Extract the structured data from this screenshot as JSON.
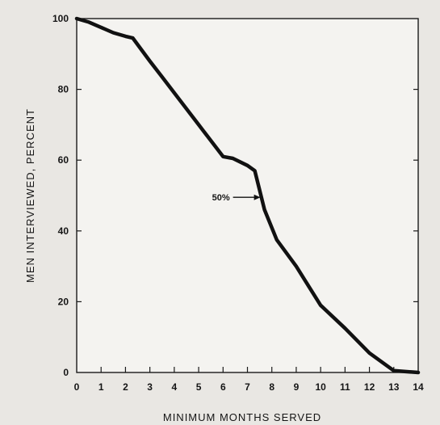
{
  "chart_data": {
    "type": "line",
    "title": "",
    "xlabel": "MINIMUM MONTHS SERVED",
    "ylabel": "MEN INTERVIEWED, PERCENT",
    "xlim": [
      0,
      14
    ],
    "ylim": [
      0,
      100
    ],
    "xticks": [
      0,
      1,
      2,
      3,
      4,
      5,
      6,
      7,
      8,
      9,
      10,
      11,
      12,
      13,
      14
    ],
    "yticks": [
      0,
      20,
      40,
      60,
      80,
      100
    ],
    "grid": false,
    "series": [
      {
        "x": [
          0,
          0.5,
          1,
          1.5,
          2,
          2.3,
          3,
          3.5,
          4,
          5,
          6,
          6.4,
          7,
          7.3,
          7.7,
          8.2,
          9,
          10,
          11,
          12,
          13,
          14
        ],
        "y": [
          100,
          99,
          97.5,
          96,
          95,
          94.5,
          88,
          83.5,
          79,
          70,
          61,
          60.5,
          58.5,
          57,
          46,
          37.5,
          30,
          19,
          12.5,
          5.5,
          0.5,
          0
        ]
      }
    ],
    "annotations": [
      {
        "text": "50%",
        "x": 7.6,
        "y": 49.5
      }
    ]
  }
}
